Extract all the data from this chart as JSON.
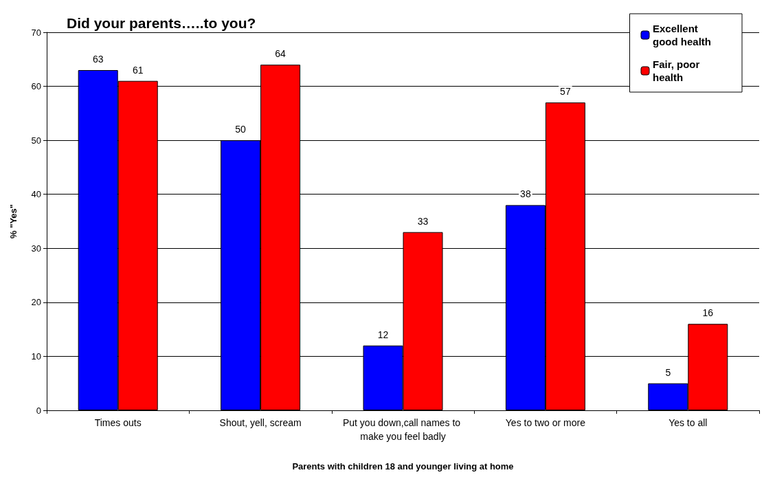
{
  "chart_data": {
    "type": "bar",
    "title": "Did your parents…..to you?",
    "xlabel": "Parents with children 18 and younger living at home",
    "ylabel": "% \"Yes\"",
    "categories": [
      "Times outs",
      "Shout, yell, scream",
      "Put you down,call names to make you feel badly",
      "Yes to two or more",
      "Yes to all"
    ],
    "series": [
      {
        "name": "Excellent good health",
        "color": "#0000ff",
        "values": [
          63,
          50,
          12,
          38,
          5
        ]
      },
      {
        "name": "Fair, poor health",
        "color": "#ff0000",
        "values": [
          61,
          64,
          33,
          57,
          16
        ]
      }
    ],
    "ylim": [
      0,
      70
    ],
    "yticks": [
      0,
      10,
      20,
      30,
      40,
      50,
      60,
      70
    ],
    "grid": "y",
    "legend": "top right",
    "data_labels": true
  }
}
